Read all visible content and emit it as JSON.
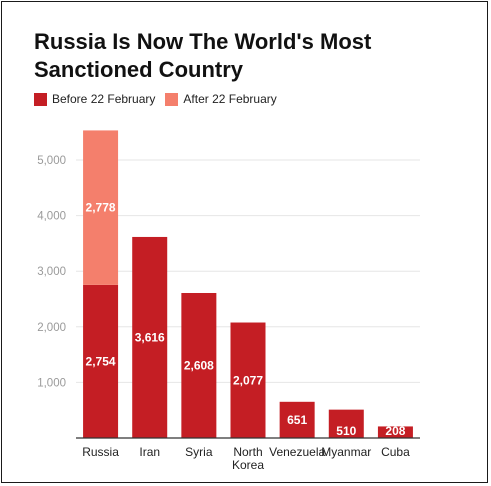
{
  "title": "Russia Is Now The World's Most Sanctioned Country",
  "legend": {
    "before_label": "Before 22 February",
    "after_label": "After 22 February"
  },
  "colors": {
    "before": "#c41e24",
    "after": "#f47f6c",
    "gridline": "#e6e6e6",
    "axis": "#333333"
  },
  "chart_data": {
    "type": "bar",
    "stacked": true,
    "title": "Russia Is Now The World's Most Sanctioned Country",
    "xlabel": "",
    "ylabel": "",
    "categories": [
      "Russia",
      "Iran",
      "Syria",
      "North Korea",
      "Venezuela",
      "Myanmar",
      "Cuba"
    ],
    "category_lines": [
      [
        "Russia"
      ],
      [
        "Iran"
      ],
      [
        "Syria"
      ],
      [
        "North",
        "Korea"
      ],
      [
        "Venezuela"
      ],
      [
        "Myanmar"
      ],
      [
        "Cuba"
      ]
    ],
    "series": [
      {
        "name": "Before 22 February",
        "values": [
          2754,
          3616,
          2608,
          2077,
          651,
          510,
          208
        ],
        "labels": [
          "2,754",
          "3,616",
          "2,608",
          "2,077",
          "651",
          "510",
          "208"
        ]
      },
      {
        "name": "After 22 February",
        "values": [
          2778,
          0,
          0,
          0,
          0,
          0,
          0
        ],
        "labels": [
          "2,778",
          "",
          "",
          "",
          "",
          "",
          ""
        ]
      }
    ],
    "yticks": [
      1000,
      2000,
      3000,
      4000,
      5000
    ],
    "ytick_labels": [
      "1,000",
      "2,000",
      "3,000",
      "4,000",
      "5,000"
    ],
    "ylim": [
      0,
      5600
    ],
    "grid": true,
    "legend_position": "top-left"
  }
}
